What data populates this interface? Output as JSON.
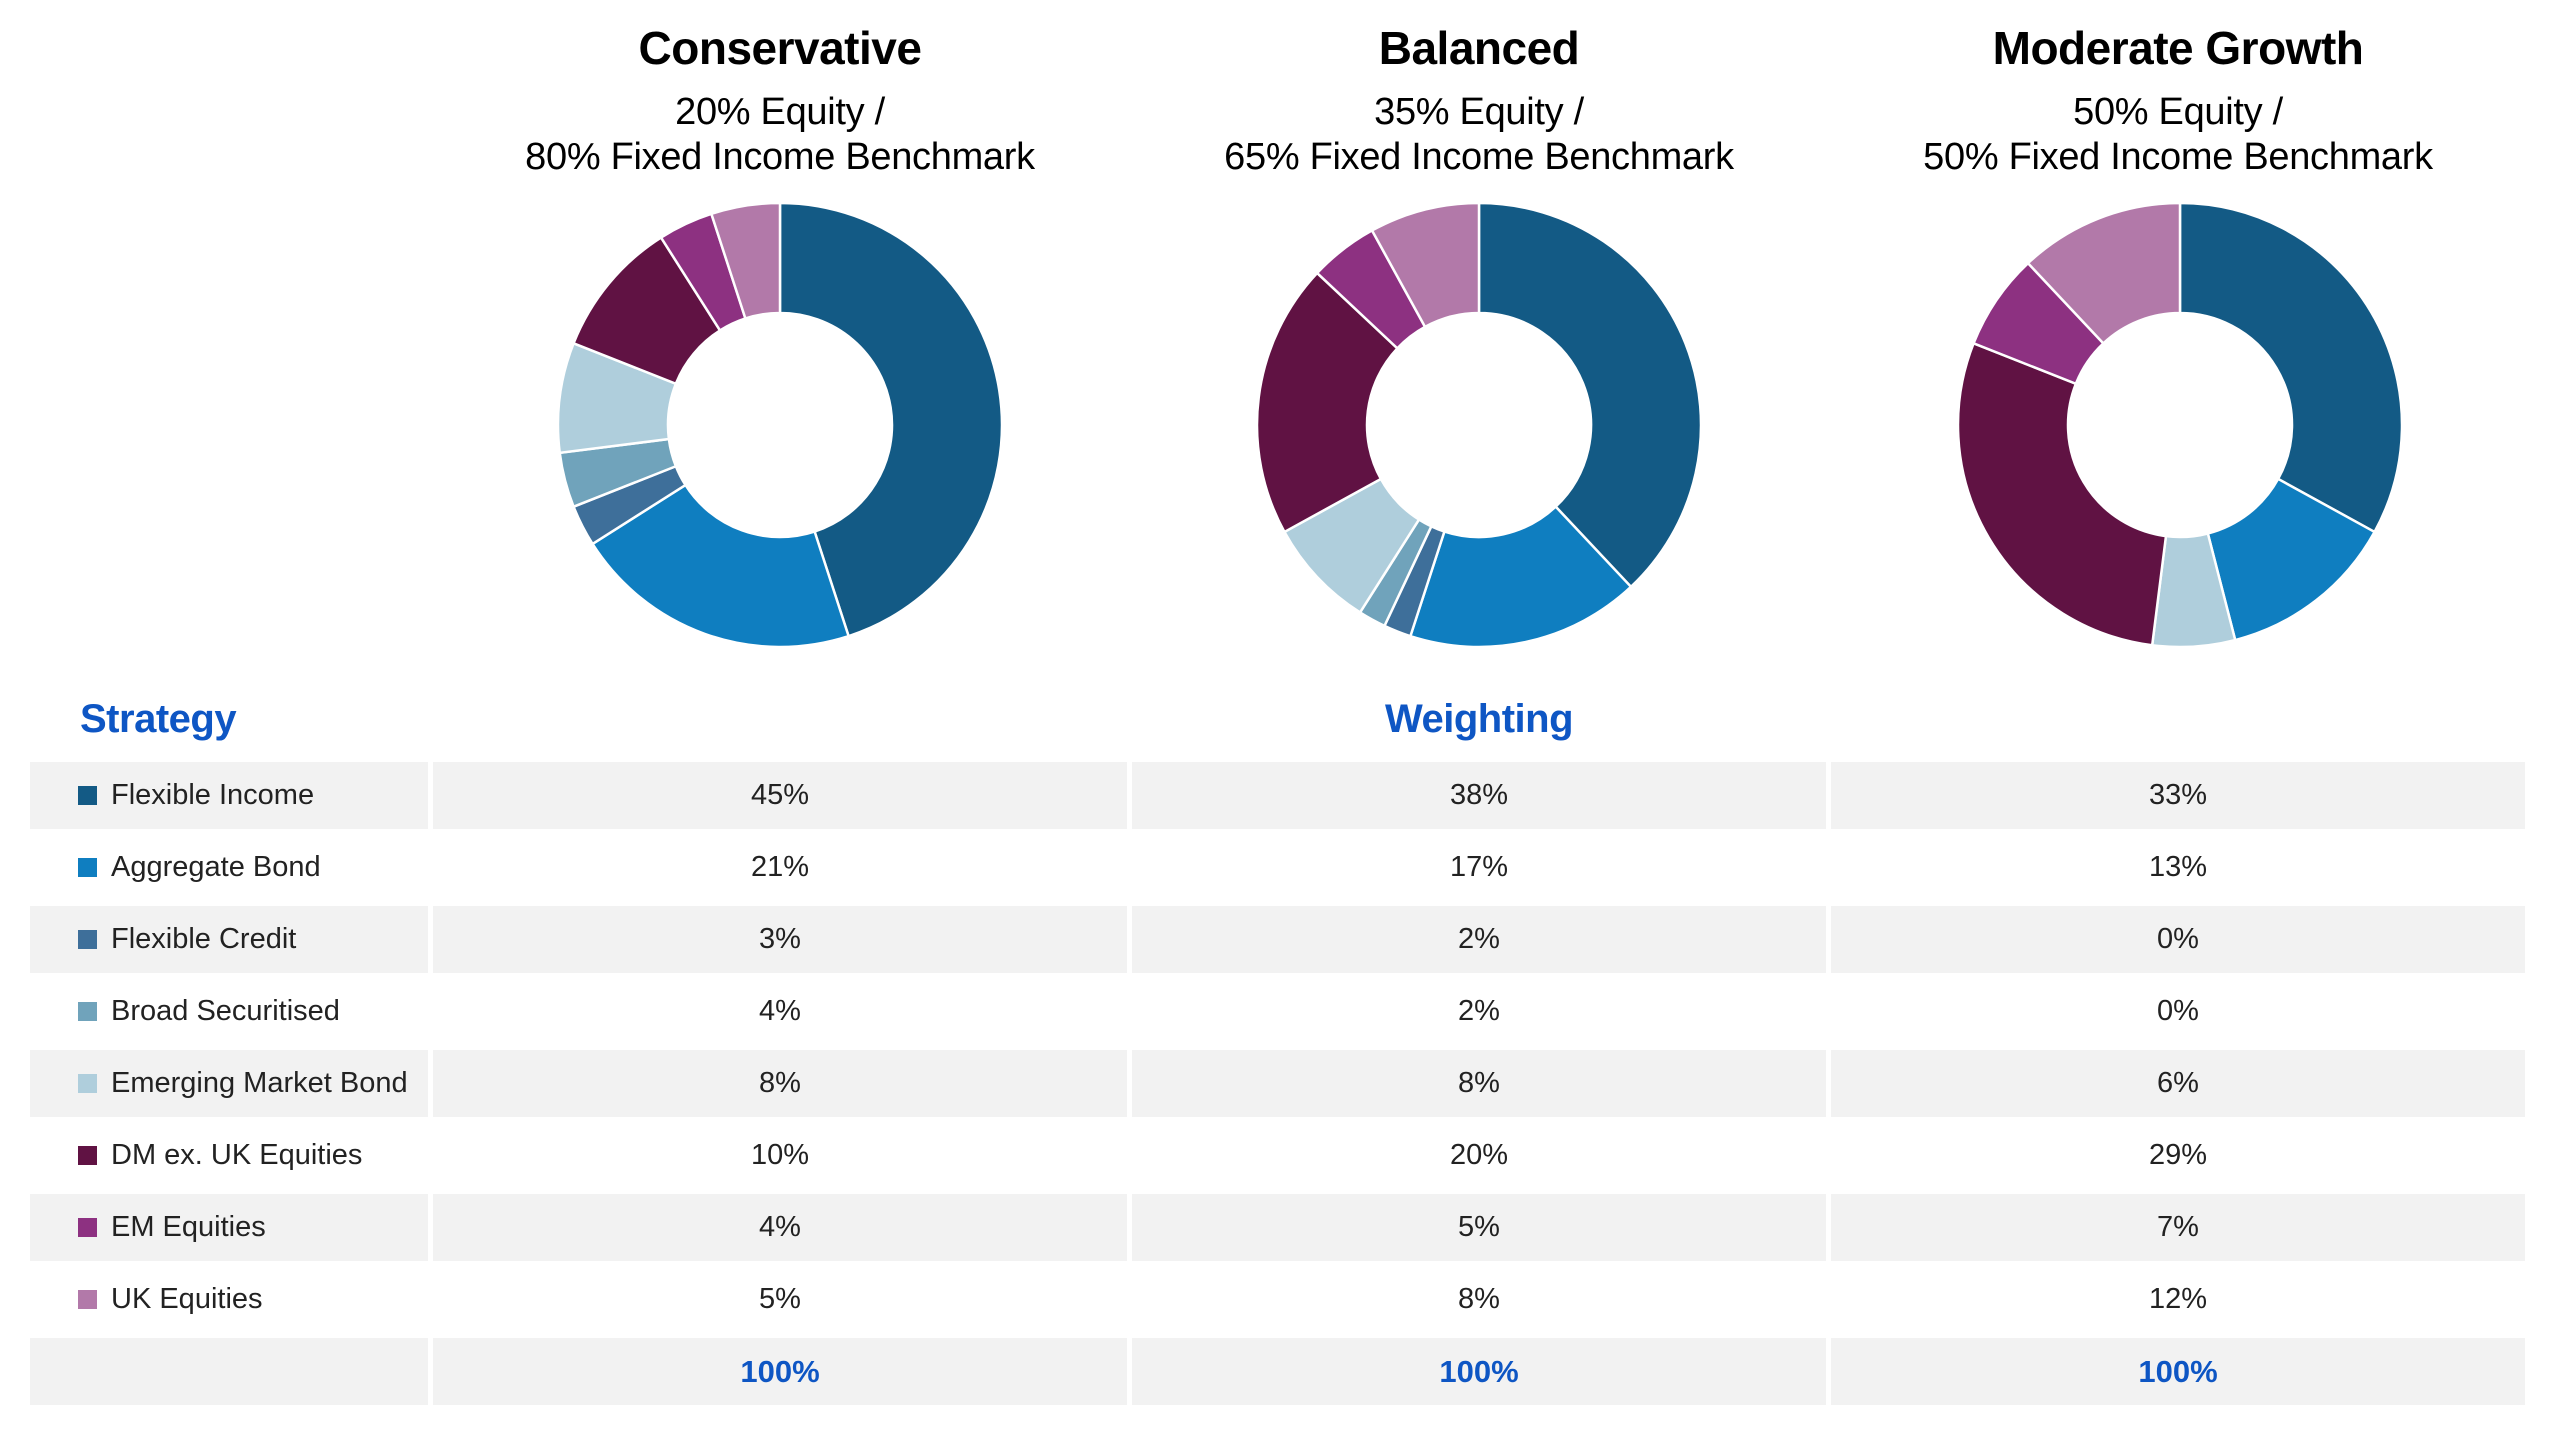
{
  "palette": {
    "accent_blue": "#0E56C4",
    "row_shade": "#F2F2F2",
    "text_dark": "#222222",
    "background": "#FFFFFF",
    "segment_divider": "#FFFFFF"
  },
  "portfolios": [
    {
      "name": "Conservative",
      "subtitle_line1": "20% Equity /",
      "subtitle_line2": "80% Fixed Income Benchmark"
    },
    {
      "name": "Balanced",
      "subtitle_line1": "35% Equity /",
      "subtitle_line2": "65% Fixed Income Benchmark"
    },
    {
      "name": "Moderate Growth",
      "subtitle_line1": "50% Equity /",
      "subtitle_line2": "50% Fixed Income Benchmark"
    }
  ],
  "table": {
    "strategy_header": "Strategy",
    "weighting_header": "Weighting",
    "rows": [
      {
        "label": "Flexible Income",
        "color": "#135A85",
        "values": [
          "45%",
          "38%",
          "33%"
        ]
      },
      {
        "label": "Aggregate Bond",
        "color": "#0F7EC0",
        "values": [
          "21%",
          "17%",
          "13%"
        ]
      },
      {
        "label": "Flexible Credit",
        "color": "#3E6F9A",
        "values": [
          "3%",
          "2%",
          "0%"
        ]
      },
      {
        "label": "Broad Securitised",
        "color": "#70A3BB",
        "values": [
          "4%",
          "2%",
          "0%"
        ]
      },
      {
        "label": "Emerging Market Bond",
        "color": "#AFCEDC",
        "values": [
          "8%",
          "8%",
          "6%"
        ]
      },
      {
        "label": "DM ex. UK Equities",
        "color": "#601243",
        "values": [
          "10%",
          "20%",
          "29%"
        ]
      },
      {
        "label": "EM Equities",
        "color": "#8D3181",
        "values": [
          "4%",
          "5%",
          "7%"
        ]
      },
      {
        "label": "UK Equities",
        "color": "#B279A9",
        "values": [
          "5%",
          "8%",
          "12%"
        ]
      }
    ],
    "totals": [
      "100%",
      "100%",
      "100%"
    ]
  },
  "chart_data": [
    {
      "type": "pie",
      "title": "Conservative",
      "subtitle": "20% Equity / 80% Fixed Income Benchmark",
      "donut": true,
      "start_angle_deg": -90,
      "direction": "clockwise",
      "categories": [
        "Flexible Income",
        "Aggregate Bond",
        "Flexible Credit",
        "Broad Securitised",
        "Emerging Market Bond",
        "DM ex. UK Equities",
        "EM Equities",
        "UK Equities"
      ],
      "values": [
        45,
        21,
        3,
        4,
        8,
        10,
        4,
        5
      ],
      "colors": [
        "#135A85",
        "#0F7EC0",
        "#3E6F9A",
        "#70A3BB",
        "#AFCEDC",
        "#601243",
        "#8D3181",
        "#B279A9"
      ]
    },
    {
      "type": "pie",
      "title": "Balanced",
      "subtitle": "35% Equity / 65% Fixed Income Benchmark",
      "donut": true,
      "start_angle_deg": -90,
      "direction": "clockwise",
      "categories": [
        "Flexible Income",
        "Aggregate Bond",
        "Flexible Credit",
        "Broad Securitised",
        "Emerging Market Bond",
        "DM ex. UK Equities",
        "EM Equities",
        "UK Equities"
      ],
      "values": [
        38,
        17,
        2,
        2,
        8,
        20,
        5,
        8
      ],
      "colors": [
        "#135A85",
        "#0F7EC0",
        "#3E6F9A",
        "#70A3BB",
        "#AFCEDC",
        "#601243",
        "#8D3181",
        "#B279A9"
      ]
    },
    {
      "type": "pie",
      "title": "Moderate Growth",
      "subtitle": "50% Equity / 50% Fixed Income Benchmark",
      "donut": true,
      "start_angle_deg": -90,
      "direction": "clockwise",
      "categories": [
        "Flexible Income",
        "Aggregate Bond",
        "Flexible Credit",
        "Broad Securitised",
        "Emerging Market Bond",
        "DM ex. UK Equities",
        "EM Equities",
        "UK Equities"
      ],
      "values": [
        33,
        13,
        0,
        0,
        6,
        29,
        7,
        12
      ],
      "colors": [
        "#135A85",
        "#0F7EC0",
        "#3E6F9A",
        "#70A3BB",
        "#AFCEDC",
        "#601243",
        "#8D3181",
        "#B279A9"
      ]
    }
  ]
}
